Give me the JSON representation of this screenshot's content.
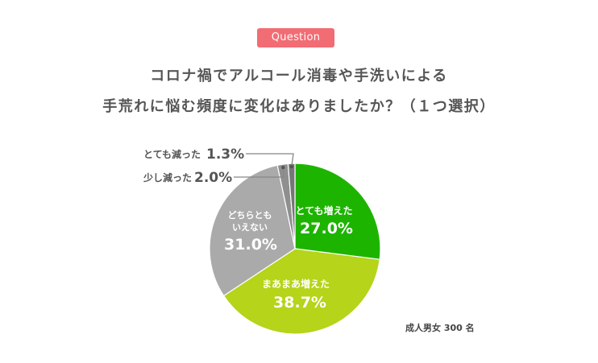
{
  "badge": {
    "label": "Question"
  },
  "question": {
    "line1": "コロナ禍でアルコール消毒や手洗いによる",
    "line2": "手荒れに悩む頻度に変化はありましたか？（１つ選択）"
  },
  "footnote": "成人男女 300 名",
  "colors": {
    "badge": "#F26C74",
    "text": "#555555",
    "leader": "#888888"
  },
  "chart_data": {
    "type": "pie",
    "start": "12 o'clock",
    "direction": "clockwise",
    "slices": [
      {
        "label": "とても増えた",
        "value": 27.0,
        "display": "27.0%",
        "color": "#1DB400",
        "label_placement": "inside"
      },
      {
        "label": "まあまあ増えた",
        "value": 38.7,
        "display": "38.7%",
        "color": "#B5D41A",
        "label_placement": "inside"
      },
      {
        "label": "どちらとも いえない",
        "value": 31.0,
        "display": "31.0%",
        "color": "#AAAAAA",
        "label_placement": "inside"
      },
      {
        "label": "少し減った",
        "value": 2.0,
        "display": "2.0%",
        "color": "#8F8F8F",
        "label_placement": "outside-left"
      },
      {
        "label": "とても減った",
        "value": 1.3,
        "display": "1.3%",
        "color": "#767676",
        "label_placement": "outside-left"
      }
    ]
  }
}
